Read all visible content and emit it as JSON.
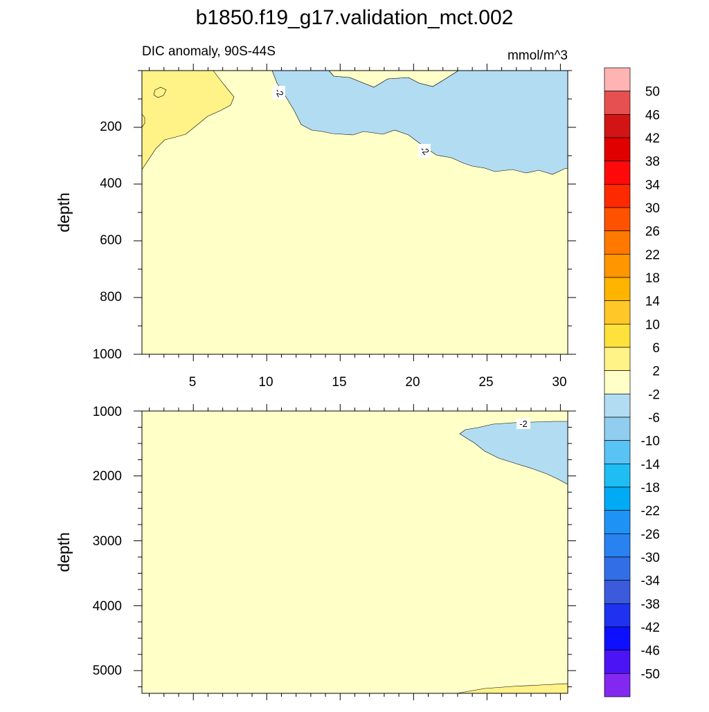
{
  "title": "b1850.f19_g17.validation_mct.002",
  "subtitle_left": "DIC anomaly, 90S-44S",
  "subtitle_right": "mmol/m^3",
  "chart_data": [
    {
      "type": "contour",
      "panel": "top",
      "ylabel": "depth",
      "xlim": [
        1.5,
        30.5
      ],
      "ylim": [
        0,
        1000
      ],
      "y_reversed": true,
      "xticks": [
        "5",
        "10",
        "15",
        "20",
        "25",
        "30"
      ],
      "yticks": [
        "200",
        "400",
        "600",
        "800",
        "1000"
      ],
      "contour_labels": [
        "-2",
        "-2"
      ],
      "regions": [
        {
          "level": "2 to 6",
          "color": "#fff287",
          "description": "upper-left near surface, x 1.5-8, depth 0-350"
        },
        {
          "level": "-6 to -2",
          "color": "#b2dcf2",
          "description": "upper-right near surface, x 11-30.5, depth 0-370"
        },
        {
          "level": "-2 to 2",
          "color": "#ffffc8",
          "description": "remainder"
        }
      ]
    },
    {
      "type": "contour",
      "panel": "bottom",
      "ylabel": "depth",
      "xlim": [
        1.5,
        30.5
      ],
      "ylim": [
        1000,
        5350
      ],
      "y_reversed": true,
      "yticks": [
        "1000",
        "2000",
        "3000",
        "4000",
        "5000"
      ],
      "contour_labels": [
        "-2"
      ],
      "regions": [
        {
          "level": "-6 to -2",
          "color": "#b2dcf2",
          "description": "x 23-30.5, depth 1200-2150"
        },
        {
          "level": "2 to 6",
          "color": "#fff287",
          "description": "bottom right sliver, depth 5200-5350"
        },
        {
          "level": "-2 to 2",
          "color": "#ffffc8",
          "description": "remainder"
        }
      ]
    }
  ],
  "colorbar": {
    "labels": [
      "50",
      "46",
      "42",
      "38",
      "34",
      "30",
      "26",
      "22",
      "18",
      "14",
      "10",
      "6",
      "2",
      "-2",
      "-6",
      "-10",
      "-14",
      "-18",
      "-22",
      "-26",
      "-30",
      "-34",
      "-38",
      "-42",
      "-46",
      "-50"
    ],
    "colors": [
      "#ffb4b4",
      "#e65050",
      "#d21414",
      "#e00000",
      "#ff0a0a",
      "#ff2a00",
      "#ff5200",
      "#ff7800",
      "#ff9600",
      "#ffb400",
      "#ffc828",
      "#ffe13c",
      "#fff287",
      "#ffffc8",
      "#b2dcf2",
      "#91cdee",
      "#5ac3f5",
      "#1ebef5",
      "#00aaf5",
      "#1e93f5",
      "#2882f0",
      "#326ee6",
      "#3c5adc",
      "#1e32f0",
      "#0f0fff",
      "#4b14f5",
      "#8228f0"
    ]
  }
}
